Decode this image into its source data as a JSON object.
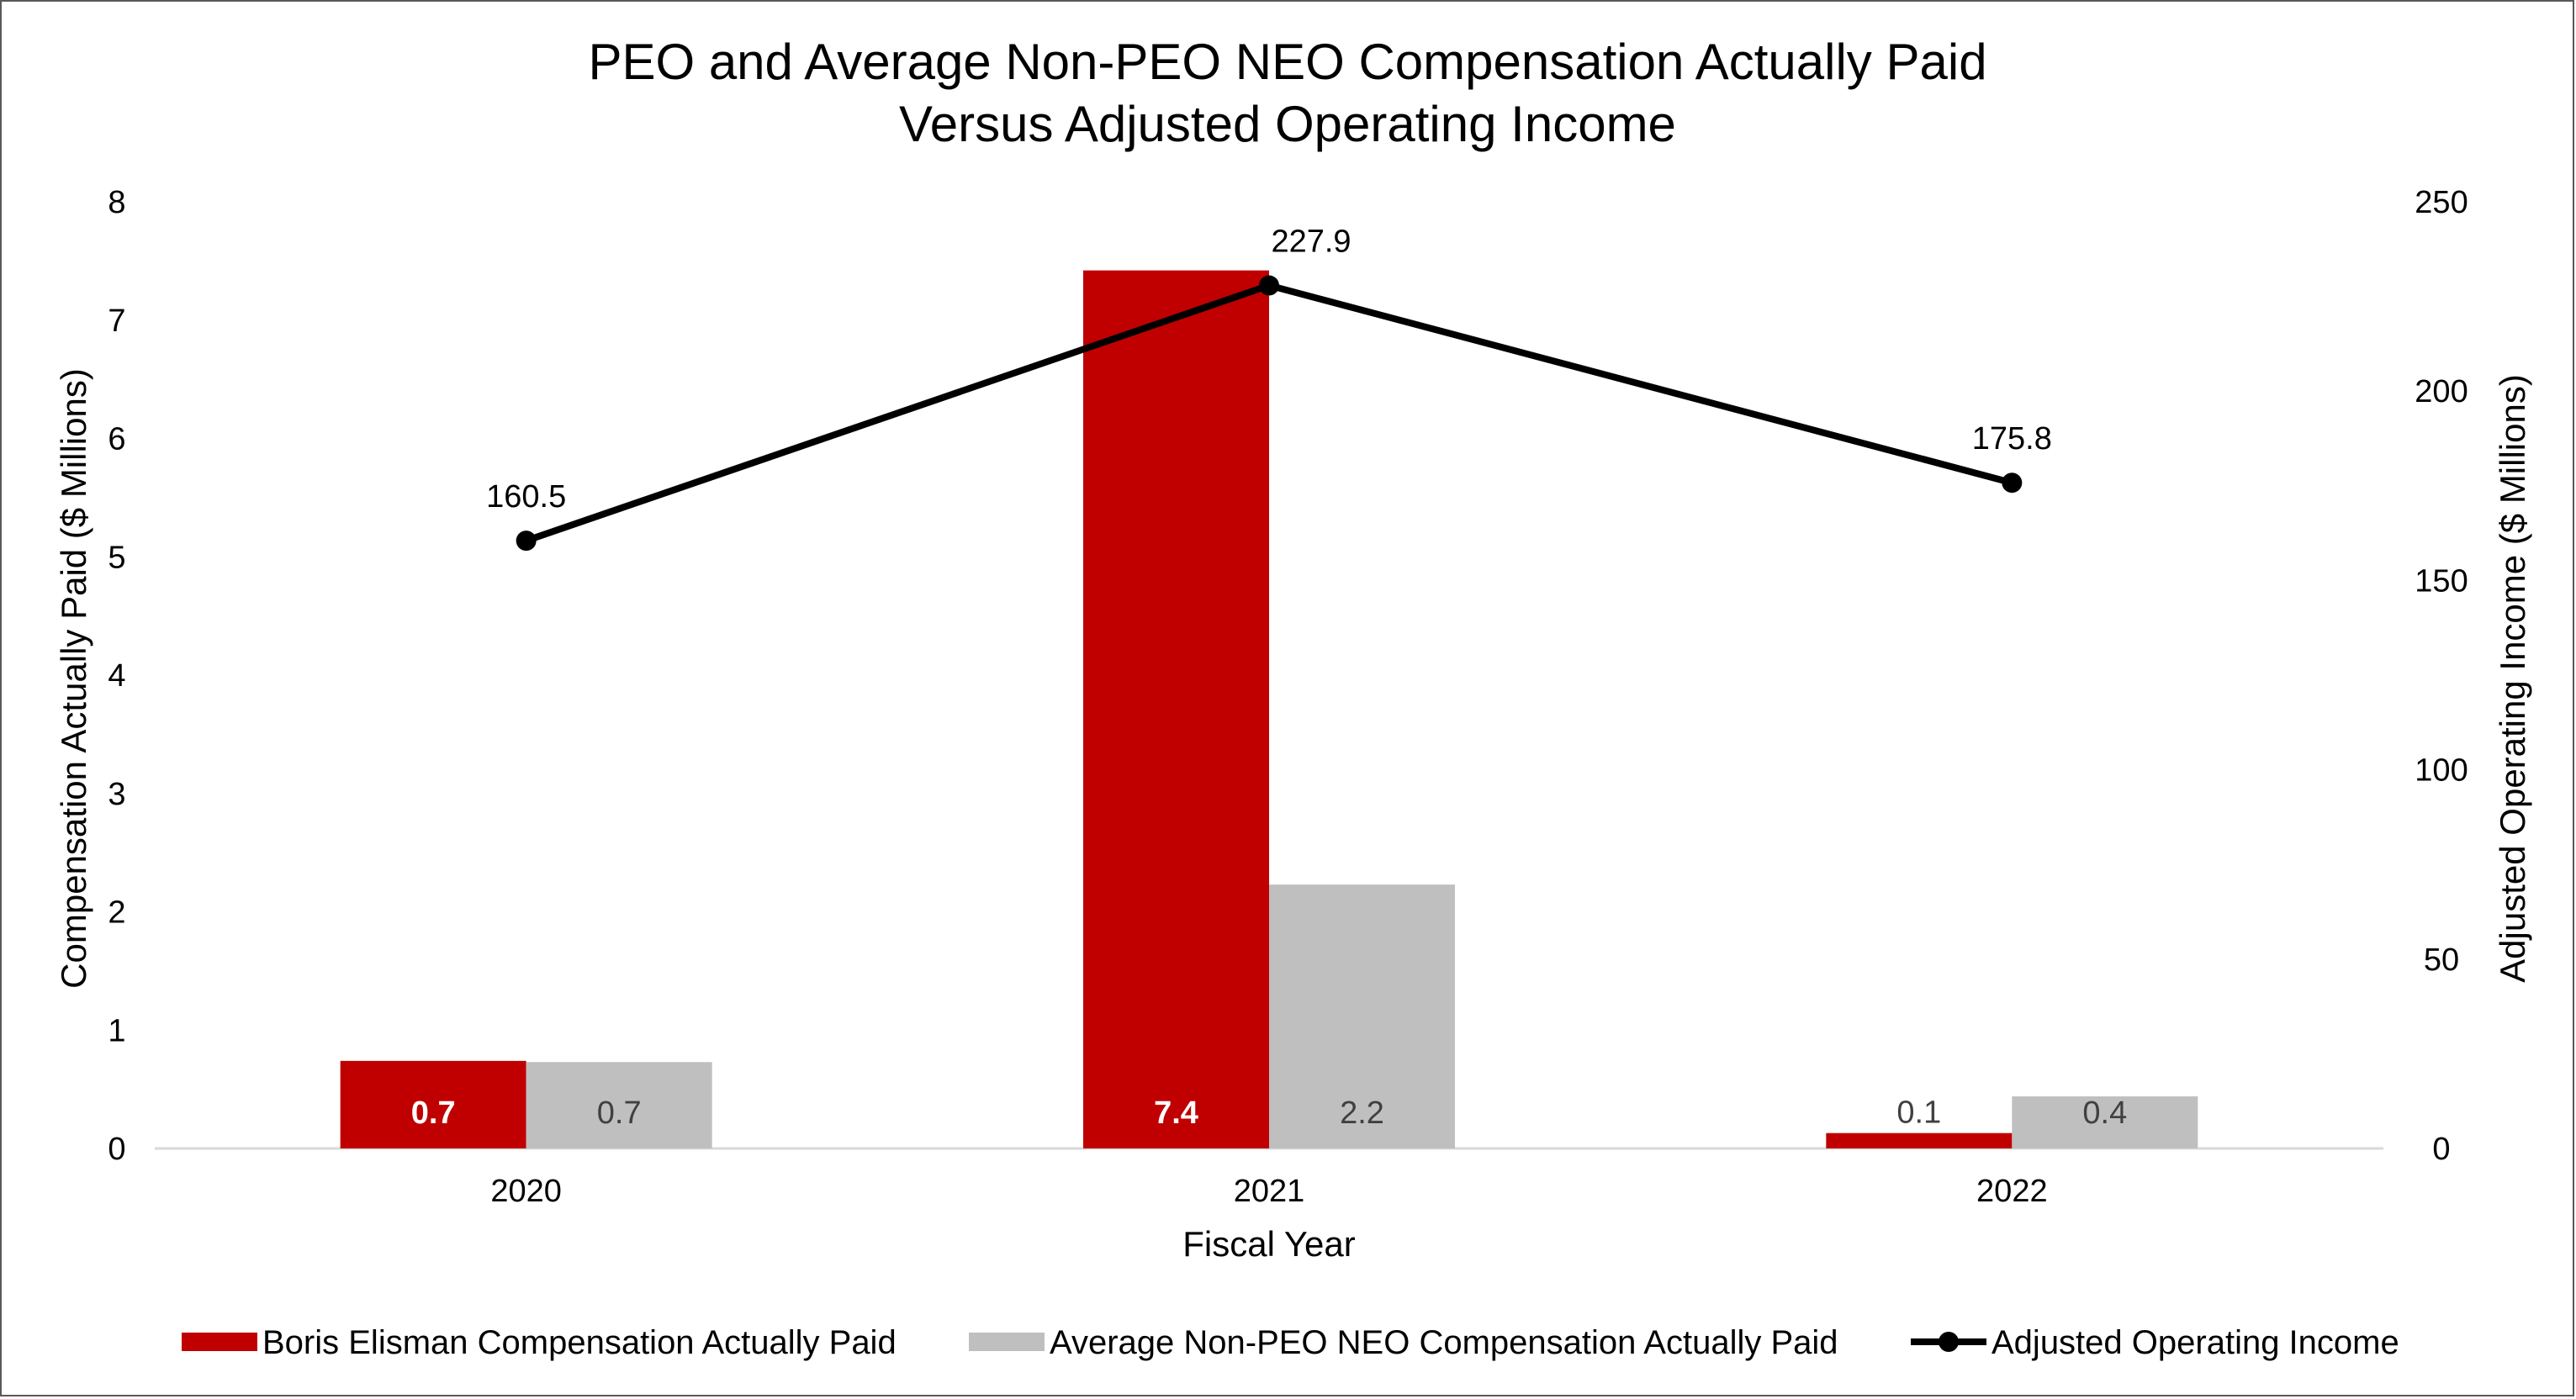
{
  "chart_data": {
    "type": "bar",
    "title": "PEO and Average Non-PEO NEO Compensation Actually Paid",
    "subtitle": "Versus Adjusted Operating Income",
    "xlabel": "Fiscal Year",
    "ylabel": "Compensation Actually Paid ($ Millions)",
    "y2label": "Adjusted Operating Income ($ Millions)",
    "categories": [
      "2020",
      "2021",
      "2022"
    ],
    "ylim": [
      0,
      8
    ],
    "yticks": [
      "0",
      "1",
      "2",
      "3",
      "4",
      "5",
      "6",
      "7",
      "8"
    ],
    "y2lim": [
      0,
      250
    ],
    "y2ticks": [
      "0",
      "50",
      "100",
      "150",
      "200",
      "250"
    ],
    "grid": false,
    "legend_position": "bottom",
    "series": [
      {
        "name": "Boris Elisman Compensation Actually Paid",
        "kind": "bar",
        "axis": "left",
        "color": "#C00000",
        "values": [
          0.74,
          7.42,
          0.13
        ],
        "labels": [
          "0.7",
          "7.4",
          "0.1"
        ],
        "label_color": "#FFFFFF",
        "label_color_small": "#404040"
      },
      {
        "name": "Average Non-PEO NEO Compensation Actually Paid",
        "kind": "bar",
        "axis": "left",
        "color": "#BFBFBF",
        "values": [
          0.73,
          2.23,
          0.44
        ],
        "labels": [
          "0.7",
          "2.2",
          "0.4"
        ],
        "label_color": "#404040"
      },
      {
        "name": "Adjusted Operating Income",
        "kind": "line",
        "axis": "right",
        "color": "#000000",
        "values": [
          160.5,
          227.9,
          175.8
        ],
        "labels": [
          "160.5",
          "227.9",
          "175.8"
        ]
      }
    ]
  }
}
